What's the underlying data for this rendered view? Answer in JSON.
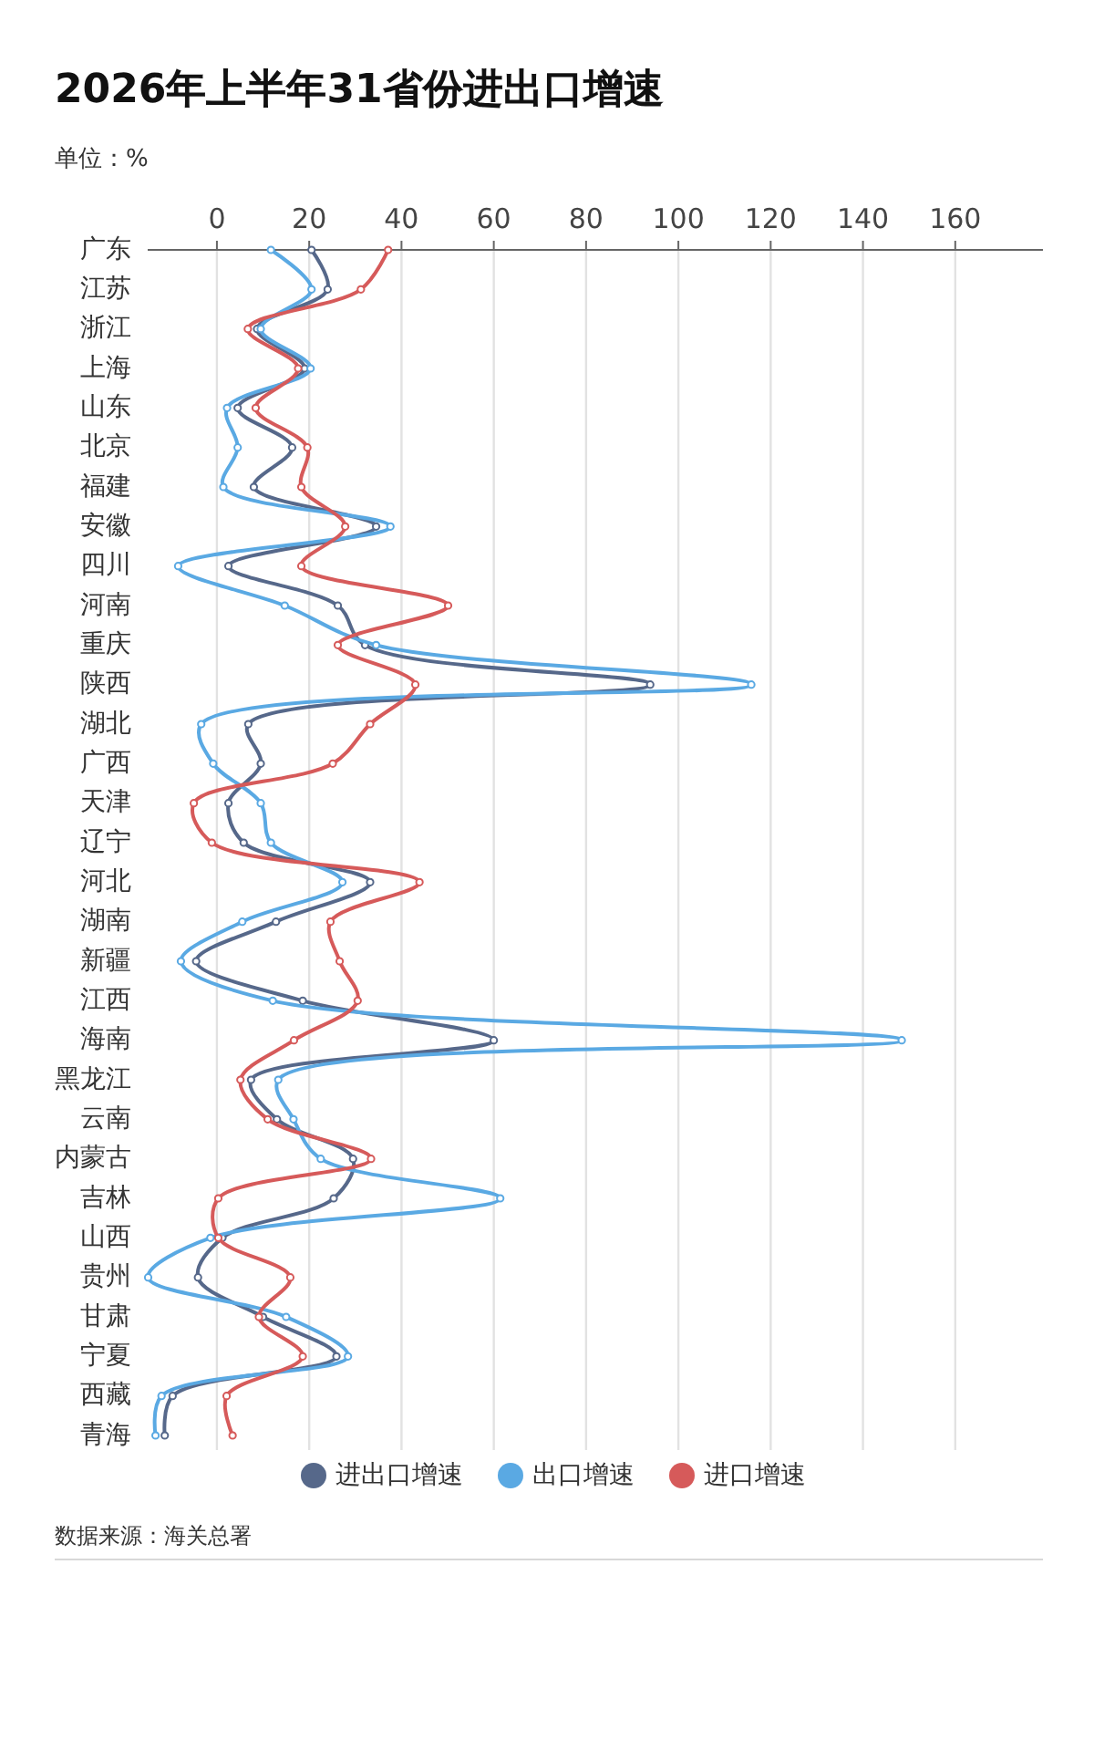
{
  "chart_data": {
    "type": "line",
    "orientation": "horizontal",
    "title": "2026年上半年31省份进出口增速",
    "xlabel": "单位：%",
    "categories": [
      "广东",
      "江苏",
      "浙江",
      "上海",
      "山东",
      "北京",
      "福建",
      "安徽",
      "四川",
      "河南",
      "重庆",
      "陕西",
      "湖北",
      "广西",
      "天津",
      "辽宁",
      "河北",
      "湖南",
      "新疆",
      "江西",
      "海南",
      "黑龙江",
      "云南",
      "内蒙古",
      "吉林",
      "山西",
      "贵州",
      "甘肃",
      "宁夏",
      "西藏",
      "青海"
    ],
    "series": [
      {
        "name": "进出口增速",
        "color": "#56688a",
        "values": [
          20.5,
          24,
          8.7,
          19,
          4.5,
          16.3,
          8,
          34.5,
          2.5,
          26.2,
          32.1,
          93.9,
          6.8,
          9.5,
          2.5,
          5.8,
          33.2,
          12.8,
          -4.5,
          18.6,
          60,
          7.4,
          13,
          29.5,
          25.3,
          1.2,
          -4.1,
          10,
          25.9,
          -9.6,
          -11.3
        ]
      },
      {
        "name": "出口增速",
        "color": "#5aa9e3",
        "values": [
          11.7,
          20.5,
          9.5,
          20.3,
          2.2,
          4.5,
          1.4,
          37.6,
          -8.4,
          14.7,
          34.5,
          115.8,
          -3.4,
          -0.8,
          9.5,
          11.7,
          27.2,
          5.5,
          -7.8,
          12.1,
          148.4,
          13.3,
          16.6,
          22.5,
          61.4,
          -1.4,
          -14.9,
          15,
          28.4,
          -12,
          -13.3
        ]
      },
      {
        "name": "进口增速",
        "color": "#d65a5a",
        "values": [
          37.1,
          31.2,
          6.7,
          17.6,
          8.4,
          19.6,
          18.3,
          27.8,
          18.3,
          50.1,
          26.2,
          43,
          33.2,
          25.1,
          -5,
          -1.1,
          43.9,
          24.6,
          26.6,
          30.5,
          16.7,
          5.1,
          11,
          33.4,
          0.3,
          0.3,
          15.9,
          9.1,
          18.6,
          2.1,
          3.4
        ]
      }
    ],
    "xlim": [
      -15,
      179
    ],
    "xticks": [
      0,
      20,
      40,
      60,
      80,
      100,
      120,
      140,
      160
    ],
    "grid": "x",
    "legend": "bottom",
    "marker": "circle",
    "annotations": [
      "数据来源：海关总署"
    ]
  }
}
